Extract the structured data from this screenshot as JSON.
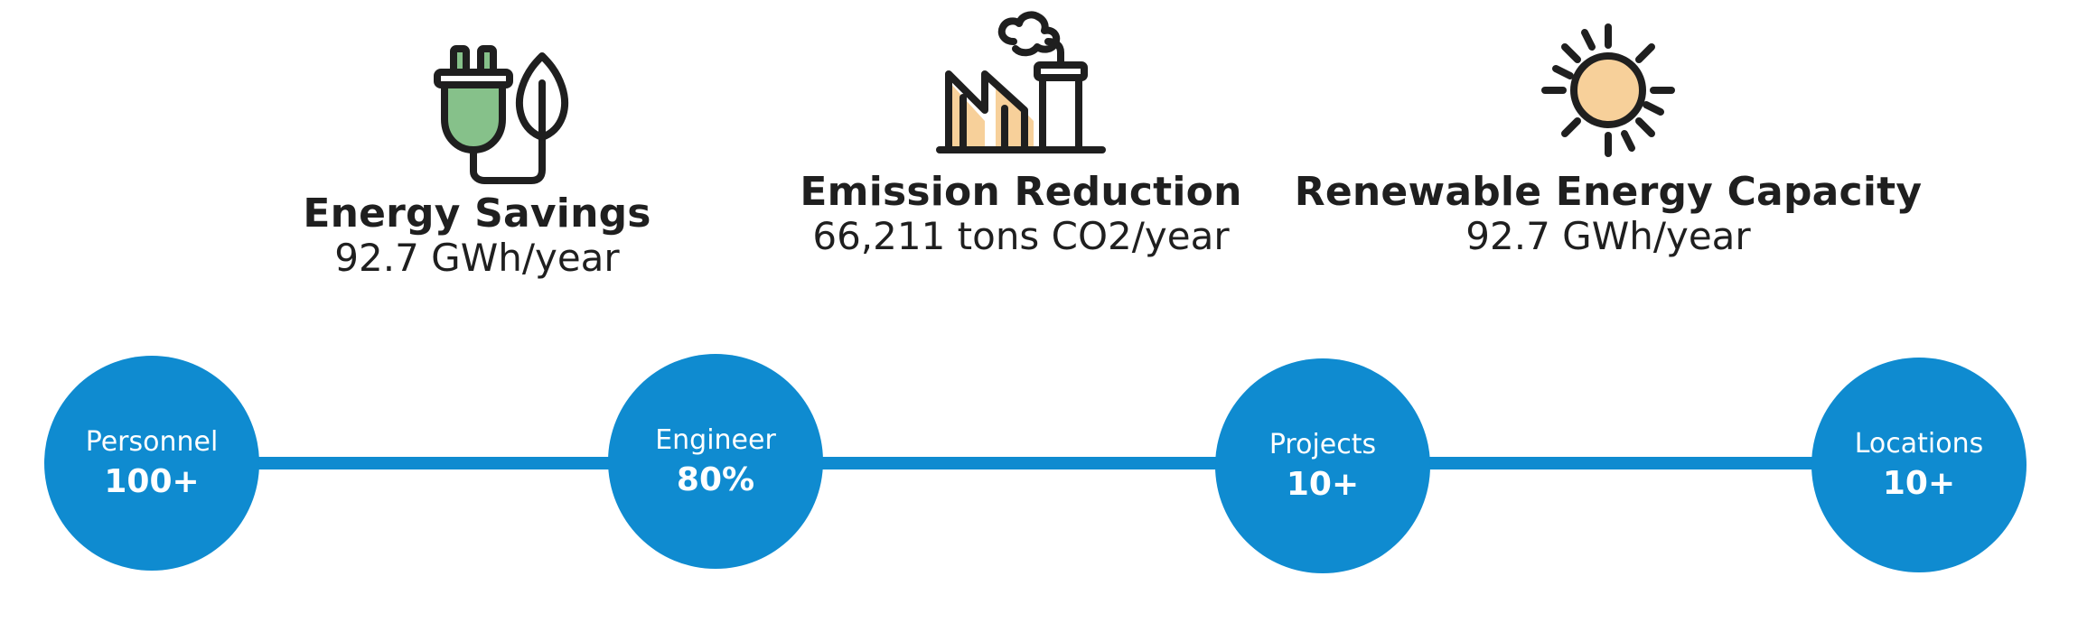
{
  "stats": [
    {
      "title": "Energy Savings",
      "value": "92.7 GWh/year",
      "icon": "plug-leaf-icon",
      "accent": "#86c18a"
    },
    {
      "title": "Emission Reduction",
      "value": "66,211 tons CO2/year",
      "icon": "factory-icon",
      "accent": "#f7d09a"
    },
    {
      "title": "Renewable Energy Capacity",
      "value": "92.7 GWh/year",
      "icon": "sun-icon",
      "accent": "#f7d09a"
    }
  ],
  "timeline": {
    "color": "#0f8bd0",
    "nodes": [
      {
        "label": "Personnel",
        "value": "100+"
      },
      {
        "label": "Engineer",
        "value": "80%"
      },
      {
        "label": "Projects",
        "value": "10+"
      },
      {
        "label": "Locations",
        "value": "10+"
      }
    ]
  }
}
